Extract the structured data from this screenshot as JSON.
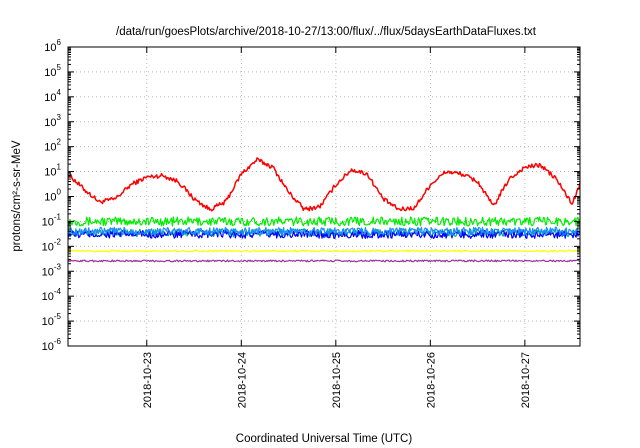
{
  "chart_data": {
    "type": "line",
    "title": "/data/run/goesPlots/archive/2018-10-27/13:00/flux/../flux/5daysEarthDataFluxes.txt",
    "xlabel": "Coordinated Universal Time (UTC)",
    "ylabel": "protons/cm²-s-sr-MeV",
    "y_scale": "log",
    "ylim": [
      1e-06,
      1000000.0
    ],
    "y_ticks": [
      {
        "value": 1e-06,
        "base": "10",
        "exp": "-6"
      },
      {
        "value": 1e-05,
        "base": "10",
        "exp": "-5"
      },
      {
        "value": 0.0001,
        "base": "10",
        "exp": "-4"
      },
      {
        "value": 0.001,
        "base": "10",
        "exp": "-3"
      },
      {
        "value": 0.01,
        "base": "10",
        "exp": "-2"
      },
      {
        "value": 0.1,
        "base": "10",
        "exp": "-1"
      },
      {
        "value": 1,
        "base": "10",
        "exp": "0"
      },
      {
        "value": 10,
        "base": "10",
        "exp": "1"
      },
      {
        "value": 100,
        "base": "10",
        "exp": "2"
      },
      {
        "value": 1000,
        "base": "10",
        "exp": "3"
      },
      {
        "value": 10000,
        "base": "10",
        "exp": "4"
      },
      {
        "value": 100000,
        "base": "10",
        "exp": "5"
      },
      {
        "value": 1000000,
        "base": "10",
        "exp": "6"
      }
    ],
    "xlim": [
      "2018-10-22 04:00",
      "2018-10-27 14:00"
    ],
    "x_ticks": [
      "2018-10-23",
      "2018-10-24",
      "2018-10-25",
      "2018-10-26",
      "2018-10-27"
    ],
    "grid": true,
    "legend": "none",
    "series": [
      {
        "color": "#ff0000",
        "x": [
          "2018-10-22 04:00",
          "2018-10-22 08:00",
          "2018-10-22 12:00",
          "2018-10-22 16:00",
          "2018-10-22 20:00",
          "2018-10-23 00:00",
          "2018-10-23 04:00",
          "2018-10-23 08:00",
          "2018-10-23 12:00",
          "2018-10-23 16:00",
          "2018-10-23 20:00",
          "2018-10-24 00:00",
          "2018-10-24 04:00",
          "2018-10-24 08:00",
          "2018-10-24 12:00",
          "2018-10-24 16:00",
          "2018-10-24 20:00",
          "2018-10-25 00:00",
          "2018-10-25 04:00",
          "2018-10-25 08:00",
          "2018-10-25 12:00",
          "2018-10-25 16:00",
          "2018-10-25 20:00",
          "2018-10-26 00:00",
          "2018-10-26 04:00",
          "2018-10-26 08:00",
          "2018-10-26 12:00",
          "2018-10-26 16:00",
          "2018-10-26 20:00",
          "2018-10-27 00:00",
          "2018-10-27 04:00",
          "2018-10-27 08:00",
          "2018-10-27 12:00",
          "2018-10-27 14:00"
        ],
        "values": [
          8,
          2,
          0.6,
          0.8,
          3,
          6,
          7,
          4,
          0.8,
          0.3,
          0.6,
          8,
          30,
          15,
          1.5,
          0.3,
          0.4,
          3,
          12,
          8,
          0.8,
          0.3,
          0.35,
          3,
          10,
          8,
          4,
          0.4,
          5,
          15,
          18,
          5,
          0.5,
          3
        ]
      },
      {
        "color": "#00ee00",
        "x": [
          "2018-10-22 04:00",
          "2018-10-27 14:00"
        ],
        "values": [
          0.1,
          0.1
        ]
      },
      {
        "color": "#00a0a0",
        "x": [
          "2018-10-22 04:00",
          "2018-10-27 14:00"
        ],
        "values": [
          0.035,
          0.035
        ]
      },
      {
        "color": "#0000ff",
        "x": [
          "2018-10-22 04:00",
          "2018-10-27 14:00"
        ],
        "values": [
          0.03,
          0.03
        ]
      },
      {
        "color": "#1a8cff",
        "x": [
          "2018-10-22 04:00",
          "2018-10-27 14:00"
        ],
        "values": [
          0.04,
          0.04
        ]
      },
      {
        "color": "#ffff00",
        "x": [
          "2018-10-22 04:00",
          "2018-10-27 14:00"
        ],
        "values": [
          0.0065,
          0.0065
        ]
      },
      {
        "color": "#993399",
        "x": [
          "2018-10-22 04:00",
          "2018-10-27 14:00"
        ],
        "values": [
          0.0026,
          0.0026
        ]
      }
    ]
  }
}
